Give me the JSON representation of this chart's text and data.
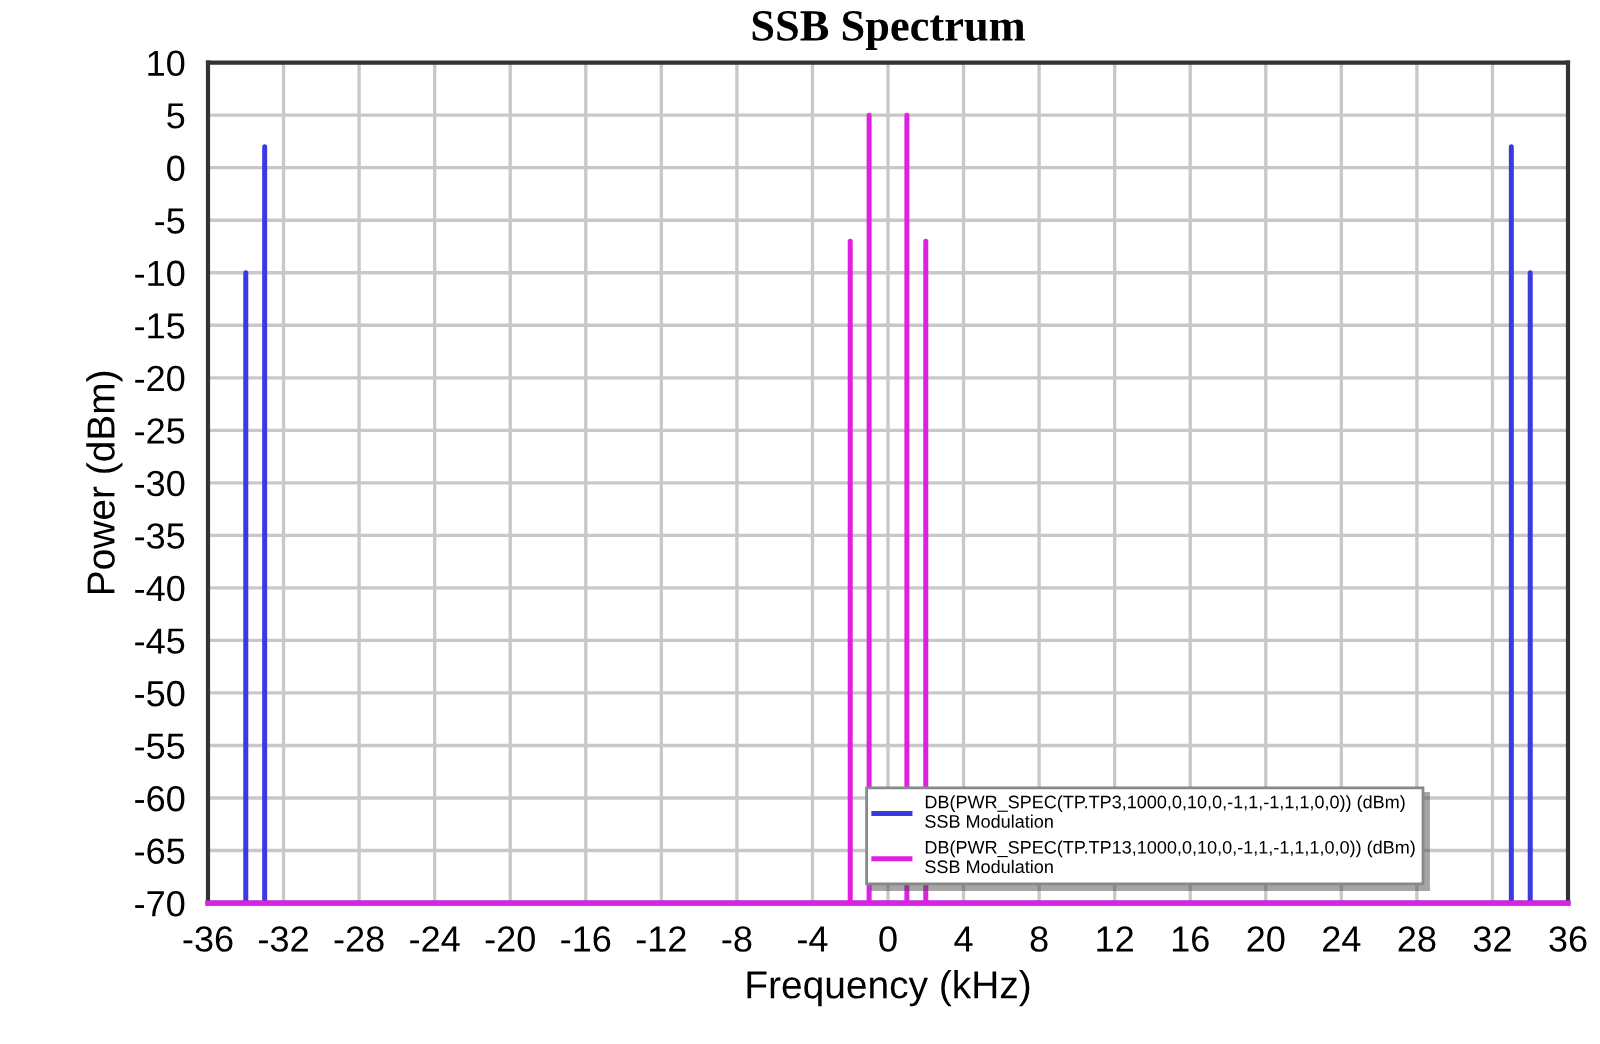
{
  "chart_data": {
    "type": "line",
    "title": "SSB Spectrum",
    "xlabel": "Frequency (kHz)",
    "ylabel": "Power (dBm)",
    "xlim": [
      -36,
      36
    ],
    "xticks": [
      -36,
      -32,
      -28,
      -24,
      -20,
      -16,
      -12,
      -8,
      -4,
      0,
      4,
      8,
      12,
      16,
      20,
      24,
      28,
      32,
      36
    ],
    "ylim": [
      -70,
      10
    ],
    "yticks": [
      10,
      5,
      0,
      -5,
      -10,
      -15,
      -20,
      -25,
      -30,
      -35,
      -40,
      -45,
      -50,
      -55,
      -60,
      -65,
      -70
    ],
    "grid": true,
    "legend": "bottom right",
    "marker": "none",
    "line_style": "solid",
    "series": [
      {
        "name": "DB(PWR_SPEC(TP.TP3,1000,0,10,0,-1,1,-1,1,1,0,0)) (dBm)\nSSB Modulation",
        "color": "#3a3ae0",
        "x": [
          -36,
          -34,
          -34,
          -34,
          -33,
          -33,
          -33,
          33,
          33,
          33,
          34,
          34,
          34,
          36
        ],
        "values": [
          -70,
          -70,
          -10,
          -70,
          -70,
          2,
          -70,
          -70,
          2,
          -70,
          -70,
          -10,
          -70,
          -70
        ]
      },
      {
        "name": "DB(PWR_SPEC(TP.TP13,1000,0,10,0,-1,1,-1,1,1,0,0)) (dBm)\nSSB Modulation",
        "color": "#e020e0",
        "x": [
          -36,
          -2,
          -2,
          -2,
          -1,
          -1,
          -1,
          1,
          1,
          1,
          2,
          2,
          2,
          36
        ],
        "values": [
          -70,
          -70,
          -7,
          -70,
          -70,
          5,
          -70,
          -70,
          5,
          -70,
          -70,
          -7,
          -70,
          -70
        ]
      }
    ]
  }
}
